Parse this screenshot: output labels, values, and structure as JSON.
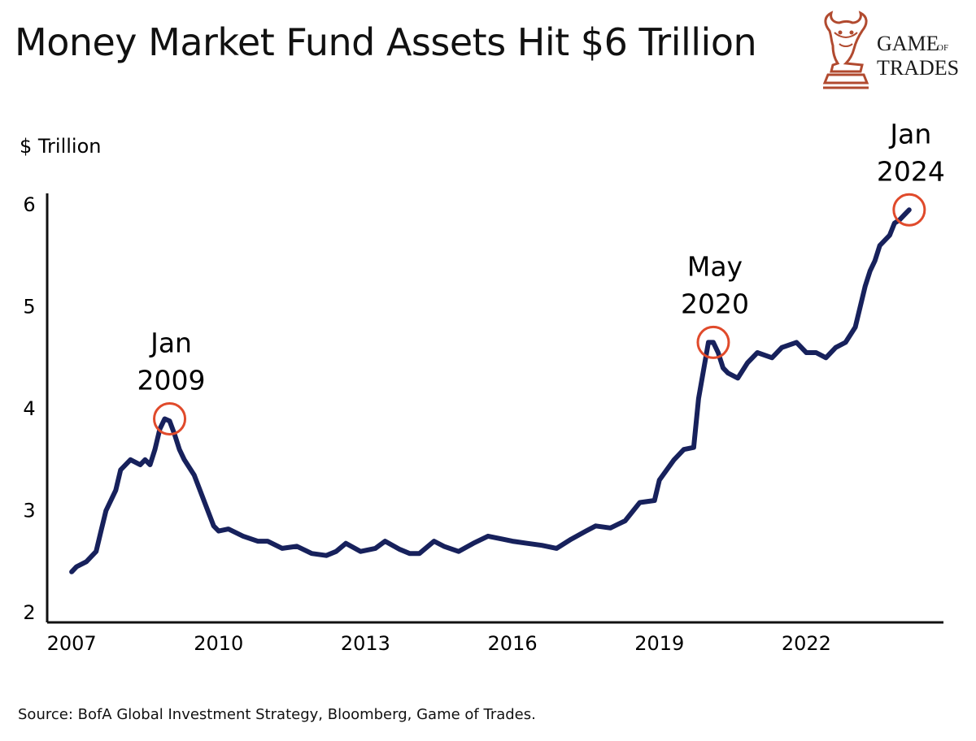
{
  "title": "Money Market Fund Assets Hit $6 Trillion",
  "logo": {
    "icon": "bull-chess-knight-icon",
    "line1": "GAME",
    "line1_small": "OF",
    "line2": "TRADES",
    "color": "#b14a2f"
  },
  "source": "Source: BofA Global Investment Strategy, Bloomberg, Game of Trades.",
  "chart_data": {
    "type": "line",
    "title": "Money Market Fund Assets Hit $6 Trillion",
    "ylabel": "$ Trillion",
    "xlabel": "",
    "xlim": [
      2006.5,
      2024.8
    ],
    "ylim": [
      2,
      6
    ],
    "x_ticks": [
      2007,
      2010,
      2013,
      2016,
      2019,
      2022
    ],
    "x_tick_labels": [
      "2007",
      "2010",
      "2013",
      "2016",
      "2019",
      "2022"
    ],
    "y_ticks": [
      2,
      3,
      4,
      5,
      6
    ],
    "y_tick_labels": [
      "2",
      "3",
      "4",
      "5",
      "6"
    ],
    "grid": false,
    "line_color": "#17215c",
    "highlight_color": "#e04a2b",
    "series": [
      {
        "x": [
          2007.0,
          2007.1,
          2007.3,
          2007.5,
          2007.6,
          2007.7,
          2007.9,
          2008.0,
          2008.2,
          2008.4,
          2008.5,
          2008.6,
          2008.7,
          2008.8,
          2008.9,
          2009.0,
          2009.1,
          2009.2,
          2009.3,
          2009.5,
          2009.7,
          2009.9,
          2010.0,
          2010.2,
          2010.5,
          2010.8,
          2011.0,
          2011.3,
          2011.6,
          2011.9,
          2012.2,
          2012.4,
          2012.6,
          2012.9,
          2013.2,
          2013.4,
          2013.7,
          2013.9,
          2014.1,
          2014.4,
          2014.6,
          2014.9,
          2015.2,
          2015.5,
          2015.8,
          2016.0,
          2016.3,
          2016.6,
          2016.9,
          2017.2,
          2017.5,
          2017.7,
          2018.0,
          2018.3,
          2018.6,
          2018.9,
          2019.0,
          2019.3,
          2019.5,
          2019.7,
          2019.8,
          2020.0,
          2020.1,
          2020.2,
          2020.3,
          2020.4,
          2020.6,
          2020.8,
          2021.0,
          2021.3,
          2021.5,
          2021.8,
          2022.0,
          2022.2,
          2022.4,
          2022.6,
          2022.8,
          2023.0,
          2023.2,
          2023.3,
          2023.4,
          2023.5,
          2023.7,
          2023.8,
          2023.9,
          2024.0,
          2024.1
        ],
        "values": [
          2.4,
          2.45,
          2.5,
          2.6,
          2.8,
          3.0,
          3.2,
          3.4,
          3.5,
          3.45,
          3.5,
          3.45,
          3.6,
          3.8,
          3.9,
          3.88,
          3.75,
          3.6,
          3.5,
          3.35,
          3.1,
          2.85,
          2.8,
          2.82,
          2.75,
          2.7,
          2.7,
          2.63,
          2.65,
          2.58,
          2.56,
          2.6,
          2.68,
          2.6,
          2.63,
          2.7,
          2.62,
          2.58,
          2.58,
          2.7,
          2.65,
          2.6,
          2.68,
          2.75,
          2.72,
          2.7,
          2.68,
          2.66,
          2.63,
          2.72,
          2.8,
          2.85,
          2.83,
          2.9,
          3.08,
          3.1,
          3.3,
          3.5,
          3.6,
          3.62,
          4.1,
          4.65,
          4.65,
          4.55,
          4.4,
          4.35,
          4.3,
          4.45,
          4.55,
          4.5,
          4.6,
          4.65,
          4.55,
          4.55,
          4.5,
          4.6,
          4.65,
          4.8,
          5.2,
          5.35,
          5.45,
          5.6,
          5.7,
          5.82,
          5.85,
          5.9,
          5.95
        ]
      }
    ],
    "annotations": [
      {
        "x": 2009.0,
        "y": 3.9,
        "line1": "Jan",
        "line2": "2009"
      },
      {
        "x": 2020.1,
        "y": 4.65,
        "line1": "May",
        "line2": "2020"
      },
      {
        "x": 2024.1,
        "y": 5.95,
        "line1": "Jan",
        "line2": "2024"
      }
    ]
  }
}
